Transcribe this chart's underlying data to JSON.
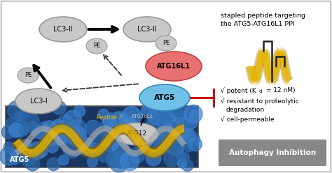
{
  "bg_color": "#e8e8e8",
  "panel_bg": "#ffffff",
  "title_text1": "stapled peptide targeting",
  "title_text2": "the ATG5-ATG16L1 PPI",
  "autophagy_label": "Autophagy Inhibition",
  "autophagy_bg": "#888888",
  "node_gray": "#c8c8c8",
  "node_gray_gradient": "#d8d8d8",
  "node_border": "#999999",
  "atg16l1_color": "#e87070",
  "atg16l1_border": "#bb4444",
  "atg5_color": "#70c0e8",
  "atg5_border": "#3388bb",
  "helix_color": "#e8b800",
  "helix_shadow": "#b08000",
  "inhibit_color": "#cc0000",
  "arrow_black": "#111111",
  "arrow_dark": "#333333",
  "inset_bg": "#1a3560"
}
